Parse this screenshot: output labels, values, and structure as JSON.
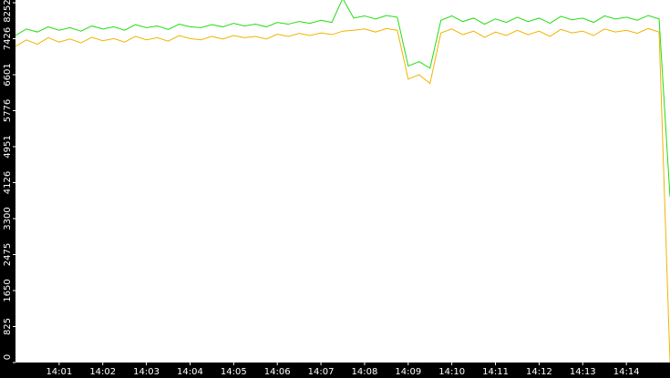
{
  "chart_data": {
    "type": "line",
    "x": [
      0,
      0.25,
      0.5,
      0.75,
      1,
      1.25,
      1.5,
      1.75,
      2,
      2.25,
      2.5,
      2.75,
      3,
      3.25,
      3.5,
      3.75,
      4,
      4.25,
      4.5,
      4.75,
      5,
      5.25,
      5.5,
      5.75,
      6,
      6.25,
      6.5,
      6.75,
      7,
      7.25,
      7.5,
      7.75,
      8,
      8.25,
      8.5,
      8.75,
      9,
      9.25,
      9.5,
      9.75,
      10,
      10.25,
      10.5,
      10.75,
      11,
      11.25,
      11.5,
      11.75,
      12,
      12.25,
      12.5,
      12.75,
      13,
      13.25,
      13.5,
      13.75,
      14,
      14.25,
      14.5,
      14.75,
      15
    ],
    "series": [
      {
        "color": "#22dd11",
        "values": [
          7500,
          7650,
          7580,
          7700,
          7620,
          7680,
          7600,
          7720,
          7650,
          7700,
          7620,
          7750,
          7680,
          7720,
          7640,
          7760,
          7700,
          7680,
          7750,
          7700,
          7780,
          7720,
          7760,
          7700,
          7800,
          7760,
          7820,
          7780,
          7850,
          7800,
          8350,
          7900,
          7950,
          7880,
          7960,
          7920,
          6800,
          6900,
          6750,
          7850,
          7950,
          7820,
          7900,
          7760,
          7880,
          7800,
          7920,
          7820,
          7900,
          7780,
          7940,
          7860,
          7900,
          7800,
          7950,
          7880,
          7920,
          7850,
          7960,
          7880,
          3800
        ]
      },
      {
        "color": "#f0b400",
        "values": [
          7250,
          7400,
          7300,
          7450,
          7350,
          7420,
          7330,
          7460,
          7380,
          7430,
          7350,
          7480,
          7400,
          7450,
          7370,
          7500,
          7430,
          7400,
          7480,
          7420,
          7500,
          7450,
          7480,
          7420,
          7530,
          7480,
          7550,
          7500,
          7560,
          7520,
          7600,
          7620,
          7650,
          7580,
          7660,
          7620,
          6500,
          6600,
          6400,
          7560,
          7650,
          7520,
          7600,
          7460,
          7580,
          7500,
          7620,
          7520,
          7600,
          7480,
          7640,
          7560,
          7600,
          7500,
          7650,
          7580,
          7620,
          7550,
          7660,
          7580,
          0
        ]
      }
    ],
    "xlim": [
      0,
      15
    ],
    "xticks": [
      {
        "value": 1,
        "label": "14:01"
      },
      {
        "value": 2,
        "label": "14:02"
      },
      {
        "value": 3,
        "label": "14:03"
      },
      {
        "value": 4,
        "label": "14:04"
      },
      {
        "value": 5,
        "label": "14:05"
      },
      {
        "value": 6,
        "label": "14:06"
      },
      {
        "value": 7,
        "label": "14:07"
      },
      {
        "value": 8,
        "label": "14:08"
      },
      {
        "value": 9,
        "label": "14:09"
      },
      {
        "value": 10,
        "label": "14:10"
      },
      {
        "value": 11,
        "label": "14:11"
      },
      {
        "value": 12,
        "label": "14:12"
      },
      {
        "value": 13,
        "label": "14:13"
      },
      {
        "value": 14,
        "label": "14:14"
      }
    ],
    "ylim": [
      0,
      8252
    ],
    "yticks": [
      0,
      825,
      1650,
      2475,
      3300,
      4126,
      4951,
      5776,
      6601,
      7426,
      8252
    ]
  }
}
